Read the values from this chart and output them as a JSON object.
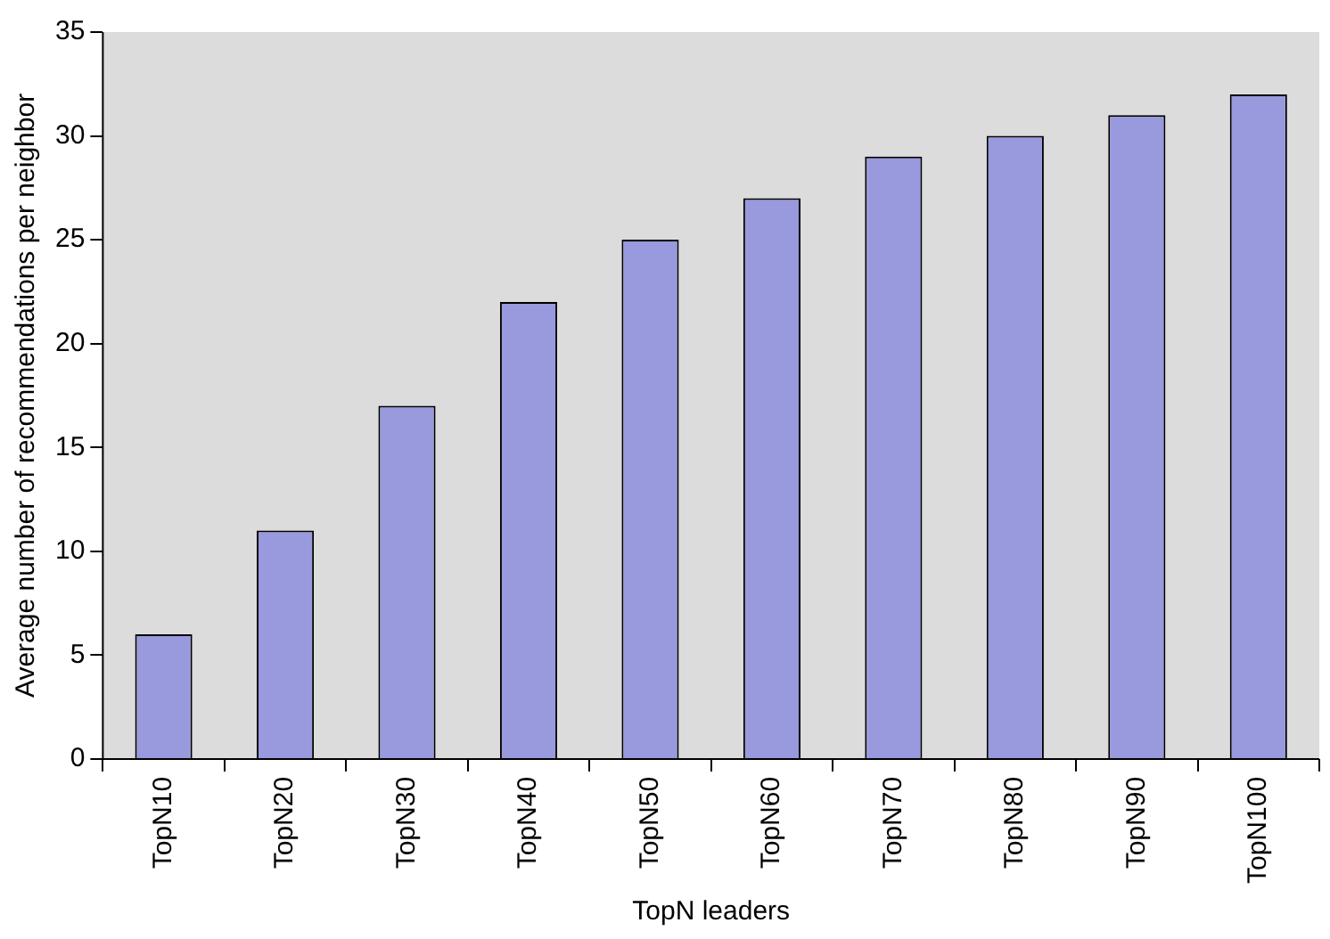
{
  "chart_data": {
    "type": "bar",
    "xlabel": "TopN leaders",
    "ylabel": "Average number of recommendations per neighbor",
    "categories": [
      "TopN10",
      "TopN20",
      "TopN30",
      "TopN40",
      "TopN50",
      "TopN60",
      "TopN70",
      "TopN80",
      "TopN90",
      "TopN100"
    ],
    "values": [
      6,
      11,
      17,
      22,
      25,
      27,
      29,
      30,
      31,
      32
    ],
    "color": "#9999dd",
    "ylim": [
      0,
      35
    ],
    "yticks": [
      0,
      5,
      10,
      15,
      20,
      25,
      30,
      35
    ],
    "grid": false,
    "legend": false
  }
}
